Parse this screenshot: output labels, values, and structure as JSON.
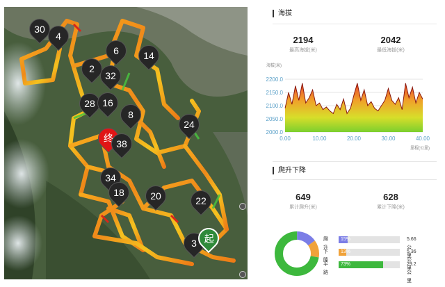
{
  "map": {
    "markers": [
      "30",
      "4",
      "6",
      "14",
      "2",
      "32",
      "28",
      "16",
      "8",
      "24",
      "38",
      "34",
      "18",
      "20",
      "22",
      "3"
    ],
    "end_label": "终",
    "start_label": "起"
  },
  "elevation": {
    "section_title": "海拔",
    "max": {
      "value": "2194",
      "label": "最高海拔(米)"
    },
    "min": {
      "value": "2042",
      "label": "最低海拔(米)"
    }
  },
  "chart_data": {
    "type": "area",
    "ylabel": "海拔(米)",
    "xlabel": "里程(公里)",
    "xlim": [
      0,
      40
    ],
    "ylim": [
      2000,
      2200
    ],
    "yticks": [
      "2000.0",
      "2050.0",
      "2100.0",
      "2150.0",
      "2200.0"
    ],
    "xticks": [
      "0.00",
      "10.00",
      "20.00",
      "30.00",
      "40.00"
    ],
    "x": [
      0,
      1,
      2,
      3,
      4,
      5,
      6,
      7,
      8,
      9,
      10,
      11,
      12,
      13,
      14,
      15,
      16,
      17,
      18,
      19,
      20,
      21,
      22,
      23,
      24,
      25,
      26,
      27,
      28,
      29,
      30,
      31,
      32,
      33,
      34,
      35,
      36,
      37,
      38,
      39,
      40
    ],
    "y": [
      2090,
      2150,
      2105,
      2175,
      2120,
      2185,
      2110,
      2130,
      2160,
      2100,
      2110,
      2085,
      2095,
      2080,
      2070,
      2105,
      2085,
      2125,
      2070,
      2090,
      2140,
      2185,
      2120,
      2160,
      2100,
      2115,
      2090,
      2080,
      2100,
      2120,
      2165,
      2120,
      2105,
      2130,
      2085,
      2185,
      2130,
      2170,
      2110,
      2150,
      2125
    ]
  },
  "climb": {
    "section_title": "爬升下降",
    "ascent": {
      "value": "649",
      "label": "累计爬升(米)"
    },
    "descent": {
      "value": "628",
      "label": "累计下降(米)"
    },
    "rows": [
      {
        "name": "爬升",
        "pct_label": "15%",
        "pct": 15,
        "dist": "5.66公里",
        "color": "#7b7de6"
      },
      {
        "name": "下降",
        "pct_label": "13%",
        "pct": 13,
        "dist": "5.36公里",
        "color": "#f0a23a"
      },
      {
        "name": "平路",
        "pct_label": "73%",
        "pct": 73,
        "dist": "29.2公里",
        "color": "#3db83d"
      }
    ]
  }
}
